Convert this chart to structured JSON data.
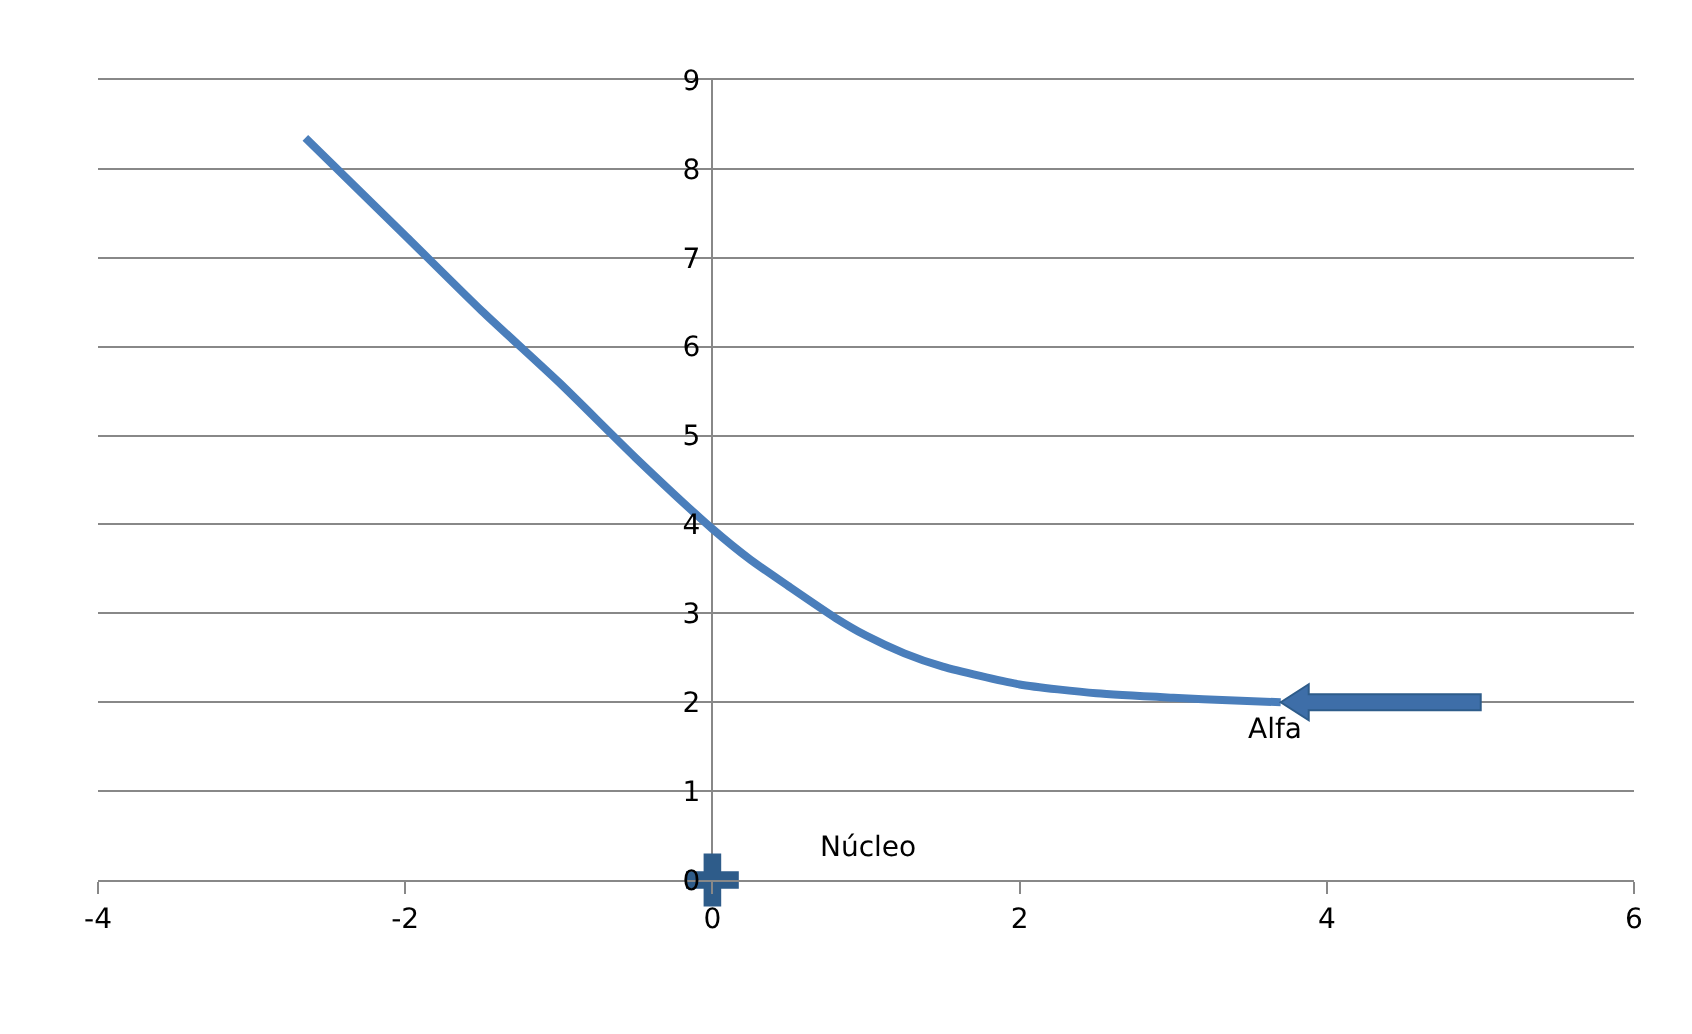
{
  "chart_data": {
    "type": "line",
    "xlim": [
      -4,
      6
    ],
    "xticks": [
      -4,
      -2,
      0,
      2,
      4,
      6
    ],
    "ylim": [
      0,
      9
    ],
    "yticks": [
      0,
      1,
      2,
      3,
      4,
      5,
      6,
      7,
      8,
      9
    ],
    "grid": "y",
    "series": [
      {
        "color": "#4a7ebb",
        "marker": "none",
        "x": [
          -2.65,
          -2,
          -1.5,
          -1,
          -0.5,
          0,
          0.25,
          0.5,
          0.8,
          1,
          1.25,
          1.5,
          2,
          2.5,
          3,
          3.4,
          3.7
        ],
        "values": [
          8.35,
          7.25,
          6.4,
          5.6,
          4.75,
          3.95,
          3.6,
          3.3,
          2.95,
          2.75,
          2.55,
          2.4,
          2.2,
          2.1,
          2.05,
          2.02,
          2.0
        ]
      },
      {
        "type": "scatter",
        "color": "#2e5c8a",
        "marker": "cross",
        "x": [
          0
        ],
        "values": [
          0
        ]
      }
    ],
    "annotations": [
      {
        "text": "Alfa",
        "x": 3.7,
        "y": 2
      },
      "Núcleo"
    ]
  }
}
